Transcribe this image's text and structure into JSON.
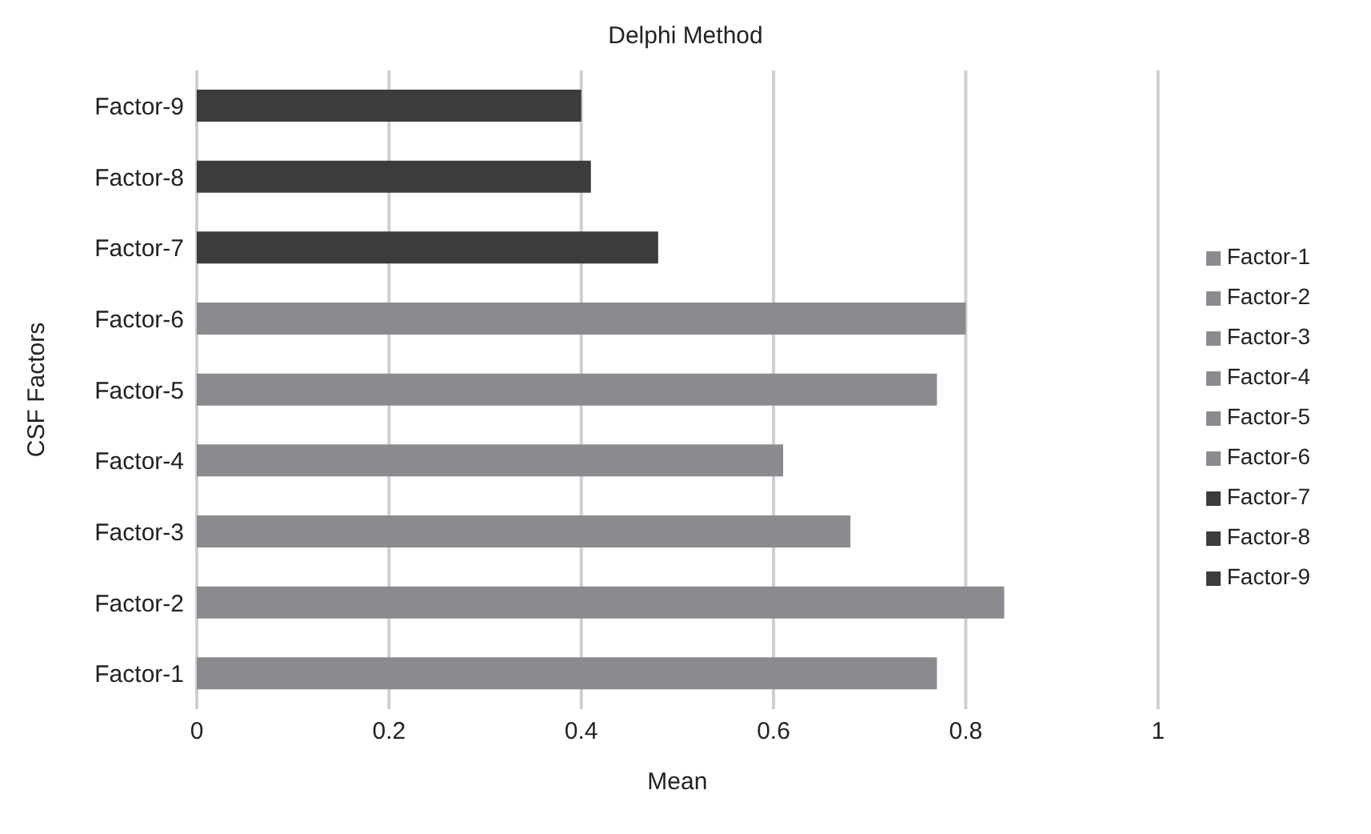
{
  "chart_data": {
    "type": "bar",
    "orientation": "horizontal",
    "stacked": true,
    "title": "Delphi Method",
    "xlabel": "Mean",
    "ylabel": "CSF Factors",
    "categories": [
      "Factor-9",
      "Factor-8",
      "Factor-7",
      "Factor-6",
      "Factor-5",
      "Factor-4",
      "Factor-3",
      "Factor-2",
      "Factor-1"
    ],
    "series": [
      {
        "name": "Factor-1",
        "color": "#8a8b8f",
        "values": [
          null,
          null,
          null,
          null,
          null,
          null,
          null,
          null,
          0.77
        ]
      },
      {
        "name": "Factor-2",
        "color": "#8a8b8f",
        "values": [
          null,
          null,
          null,
          null,
          null,
          null,
          null,
          0.84,
          null
        ]
      },
      {
        "name": "Factor-3",
        "color": "#8a8b8f",
        "values": [
          null,
          null,
          null,
          null,
          null,
          null,
          0.68,
          null,
          null
        ]
      },
      {
        "name": "Factor-4",
        "color": "#8a8b8f",
        "values": [
          null,
          null,
          null,
          null,
          null,
          0.61,
          null,
          null,
          null
        ]
      },
      {
        "name": "Factor-5",
        "color": "#8a8b8f",
        "values": [
          null,
          null,
          null,
          null,
          0.77,
          null,
          null,
          null,
          null
        ]
      },
      {
        "name": "Factor-6",
        "color": "#8a8b8f",
        "values": [
          null,
          null,
          null,
          0.8,
          null,
          null,
          null,
          null,
          null
        ]
      },
      {
        "name": "Factor-7",
        "color": "#3c3c3c",
        "values": [
          null,
          null,
          0.48,
          null,
          null,
          null,
          null,
          null,
          null
        ]
      },
      {
        "name": "Factor-8",
        "color": "#3c3c3c",
        "values": [
          null,
          0.41,
          null,
          null,
          null,
          null,
          null,
          null,
          null
        ]
      },
      {
        "name": "Factor-9",
        "color": "#3c3c3c",
        "values": [
          0.4,
          null,
          null,
          null,
          null,
          null,
          null,
          null,
          null
        ]
      }
    ],
    "xlim": [
      0,
      1
    ],
    "xticks": [
      0,
      0.2,
      0.4,
      0.6,
      0.8,
      1
    ],
    "grid": "x",
    "legend": "right"
  }
}
